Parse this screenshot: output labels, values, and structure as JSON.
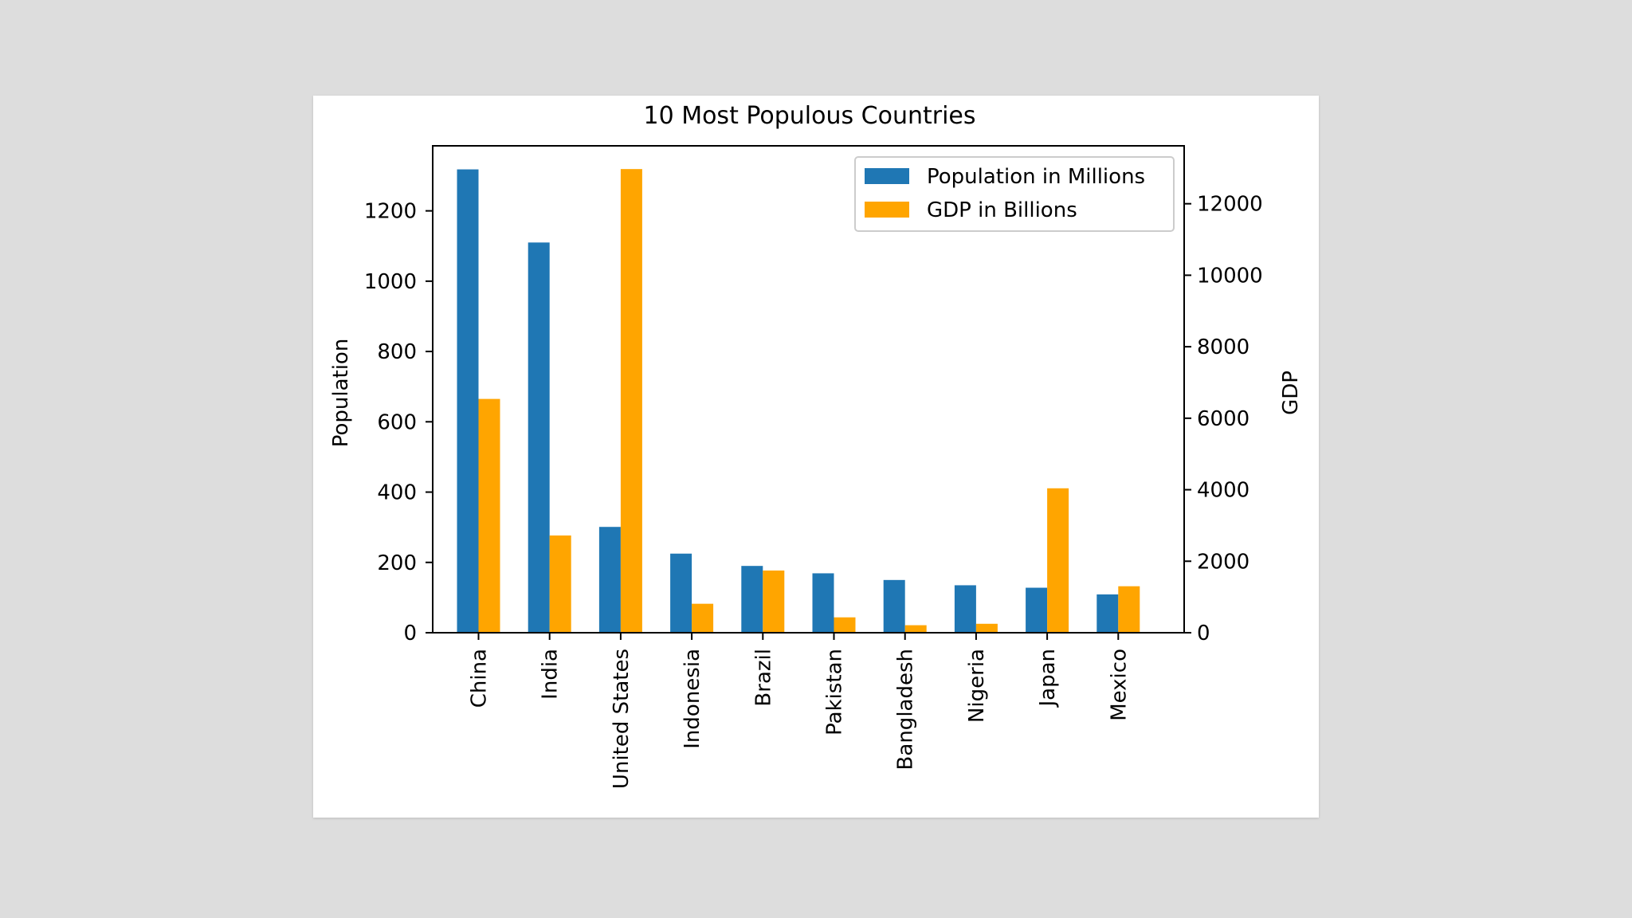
{
  "chart_data": {
    "type": "bar",
    "title": "10 Most Populous Countries",
    "categories": [
      "China",
      "India",
      "United States",
      "Indonesia",
      "Brazil",
      "Pakistan",
      "Bangladesh",
      "Nigeria",
      "Japan",
      "Mexico"
    ],
    "series": [
      {
        "name": "Population in Millions",
        "axis": "left",
        "color": "#1f77b4",
        "values": [
          1318,
          1110,
          301,
          225,
          190,
          169,
          150,
          135,
          128,
          109
        ]
      },
      {
        "name": "GDP in Billions",
        "axis": "right",
        "color": "#ffa500",
        "values": [
          6540,
          2720,
          12970,
          810,
          1740,
          430,
          210,
          250,
          4040,
          1300
        ]
      }
    ],
    "ylabel_left": "Population",
    "ylabel_right": "GDP",
    "ylim_left": [
      0,
      1385
    ],
    "ylim_right": [
      0,
      13620
    ],
    "yticks_left": [
      0,
      200,
      400,
      600,
      800,
      1000,
      1200
    ],
    "yticks_right": [
      0,
      2000,
      4000,
      6000,
      8000,
      10000,
      12000
    ],
    "legend_position": "top-right",
    "grid": false
  }
}
